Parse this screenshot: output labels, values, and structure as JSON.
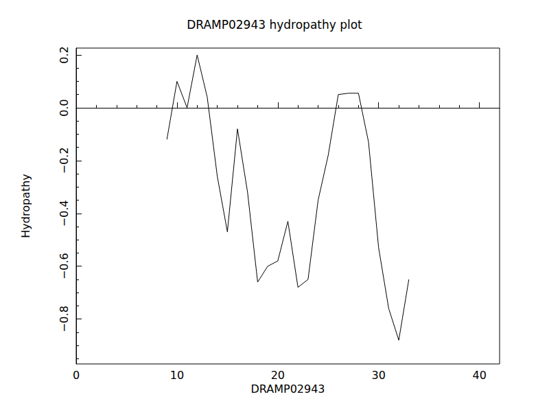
{
  "chart_data": {
    "type": "line",
    "title": "DRAMP02943 hydropathy plot",
    "x_label": "DRAMP02943",
    "y_label": "Hydropathy",
    "x": [
      9,
      10,
      11,
      12,
      13,
      14,
      15,
      16,
      17,
      18,
      19,
      20,
      21,
      22,
      23,
      24,
      25,
      26,
      27,
      28,
      29,
      30,
      31,
      32,
      33
    ],
    "values": [
      -0.12,
      0.1,
      0.0,
      0.2,
      0.04,
      -0.26,
      -0.47,
      -0.08,
      -0.32,
      -0.66,
      -0.6,
      -0.58,
      -0.43,
      -0.68,
      -0.65,
      -0.35,
      -0.18,
      0.05,
      0.055,
      0.055,
      -0.13,
      -0.53,
      -0.76,
      -0.88,
      -0.65
    ],
    "color": "#000000",
    "xlim": [
      0,
      42
    ],
    "xticks": [
      0,
      10,
      20,
      30,
      40
    ],
    "ylim": [
      -0.97,
      0.226
    ],
    "yticks": [
      {
        "value": -0.8,
        "label": "−0.8"
      },
      {
        "value": -0.6,
        "label": "−0.6"
      },
      {
        "value": -0.4,
        "label": "−0.4"
      },
      {
        "value": -0.2,
        "label": "−0.2"
      },
      {
        "value": 0,
        "label": "0.0"
      },
      {
        "value": 0.2,
        "label": "0.2"
      }
    ],
    "grid": false
  }
}
